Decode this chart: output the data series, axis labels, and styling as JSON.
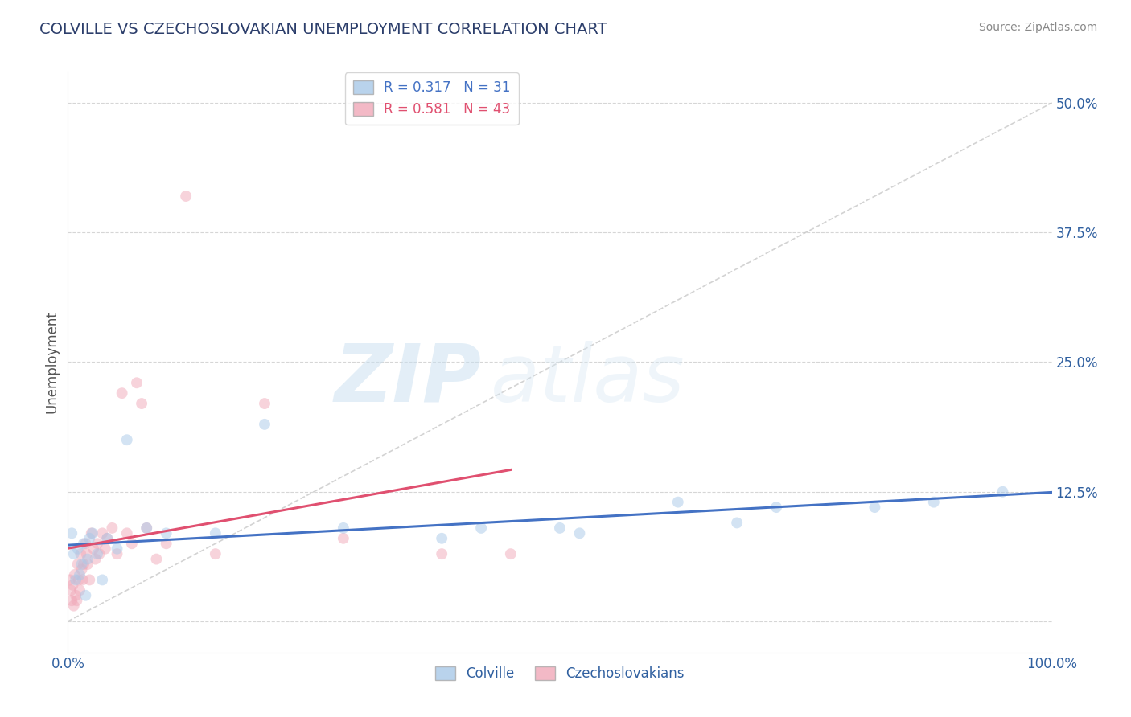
{
  "title": "COLVILLE VS CZECHOSLOVAKIAN UNEMPLOYMENT CORRELATION CHART",
  "source_text": "Source: ZipAtlas.com",
  "ylabel": "Unemployment",
  "xlim": [
    0,
    1.0
  ],
  "ylim": [
    -0.03,
    0.53
  ],
  "xticks": [
    0.0,
    0.25,
    0.5,
    0.75,
    1.0
  ],
  "xticklabels": [
    "0.0%",
    "",
    "",
    "",
    "100.0%"
  ],
  "yticks": [
    0.0,
    0.125,
    0.25,
    0.375,
    0.5
  ],
  "yticklabels": [
    "",
    "12.5%",
    "25.0%",
    "37.5%",
    "50.0%"
  ],
  "grid_color": "#cccccc",
  "background_color": "#ffffff",
  "title_color": "#2c3e6b",
  "axis_color": "#3060a0",
  "colville_color": "#a8c8e8",
  "czech_color": "#f0a8b8",
  "colville_line_color": "#4472c4",
  "czech_line_color": "#e05070",
  "ref_line_color": "#c8c8c8",
  "legend_R1": "0.317",
  "legend_N1": "31",
  "legend_R2": "0.581",
  "legend_N2": "43",
  "legend_label1": "Colville",
  "legend_label2": "Czechoslovakians",
  "watermark_zip": "ZIP",
  "watermark_atlas": "atlas",
  "colville_x": [
    0.004,
    0.006,
    0.008,
    0.01,
    0.012,
    0.014,
    0.016,
    0.018,
    0.02,
    0.022,
    0.025,
    0.03,
    0.035,
    0.04,
    0.05,
    0.06,
    0.08,
    0.1,
    0.15,
    0.2,
    0.28,
    0.38,
    0.42,
    0.5,
    0.52,
    0.62,
    0.68,
    0.72,
    0.82,
    0.88,
    0.95
  ],
  "colville_y": [
    0.085,
    0.065,
    0.04,
    0.07,
    0.045,
    0.055,
    0.075,
    0.025,
    0.06,
    0.08,
    0.085,
    0.065,
    0.04,
    0.08,
    0.07,
    0.175,
    0.09,
    0.085,
    0.085,
    0.19,
    0.09,
    0.08,
    0.09,
    0.09,
    0.085,
    0.115,
    0.095,
    0.11,
    0.11,
    0.115,
    0.125
  ],
  "czech_x": [
    0.002,
    0.003,
    0.004,
    0.005,
    0.006,
    0.007,
    0.008,
    0.009,
    0.01,
    0.011,
    0.012,
    0.013,
    0.014,
    0.015,
    0.016,
    0.018,
    0.019,
    0.02,
    0.022,
    0.024,
    0.026,
    0.028,
    0.03,
    0.032,
    0.035,
    0.038,
    0.04,
    0.045,
    0.05,
    0.055,
    0.06,
    0.065,
    0.07,
    0.075,
    0.08,
    0.09,
    0.1,
    0.12,
    0.15,
    0.2,
    0.28,
    0.38,
    0.45
  ],
  "czech_y": [
    0.04,
    0.03,
    0.02,
    0.035,
    0.015,
    0.045,
    0.025,
    0.02,
    0.055,
    0.04,
    0.03,
    0.065,
    0.05,
    0.04,
    0.055,
    0.075,
    0.065,
    0.055,
    0.04,
    0.085,
    0.07,
    0.06,
    0.075,
    0.065,
    0.085,
    0.07,
    0.08,
    0.09,
    0.065,
    0.22,
    0.085,
    0.075,
    0.23,
    0.21,
    0.09,
    0.06,
    0.075,
    0.41,
    0.065,
    0.21,
    0.08,
    0.065,
    0.065
  ],
  "marker_size": 100,
  "marker_alpha": 0.5,
  "line_width": 2.2
}
